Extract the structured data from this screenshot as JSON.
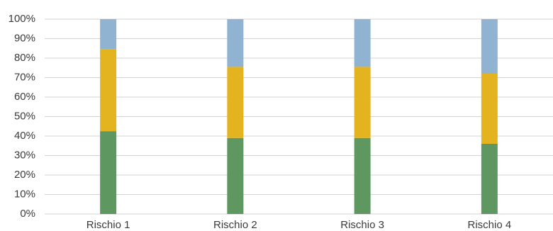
{
  "chart_data": {
    "type": "bar",
    "stacked": true,
    "percent": true,
    "categories": [
      "Rischio 1",
      "Rischio 2",
      "Rischio 3",
      "Rischio 4"
    ],
    "series": [
      {
        "values": [
          42.5,
          39,
          39,
          36
        ],
        "color": "#5e9760"
      },
      {
        "values": [
          42,
          36.5,
          36.5,
          36
        ],
        "color": "#e3b420"
      },
      {
        "values": [
          15.5,
          24.5,
          24.5,
          28
        ],
        "color": "#91b3d2"
      }
    ],
    "y_tick_labels": [
      "0%",
      "10%",
      "20%",
      "30%",
      "40%",
      "50%",
      "60%",
      "70%",
      "80%",
      "90%",
      "100%"
    ],
    "ylim": [
      0,
      100
    ],
    "grid": true,
    "legend": false
  }
}
